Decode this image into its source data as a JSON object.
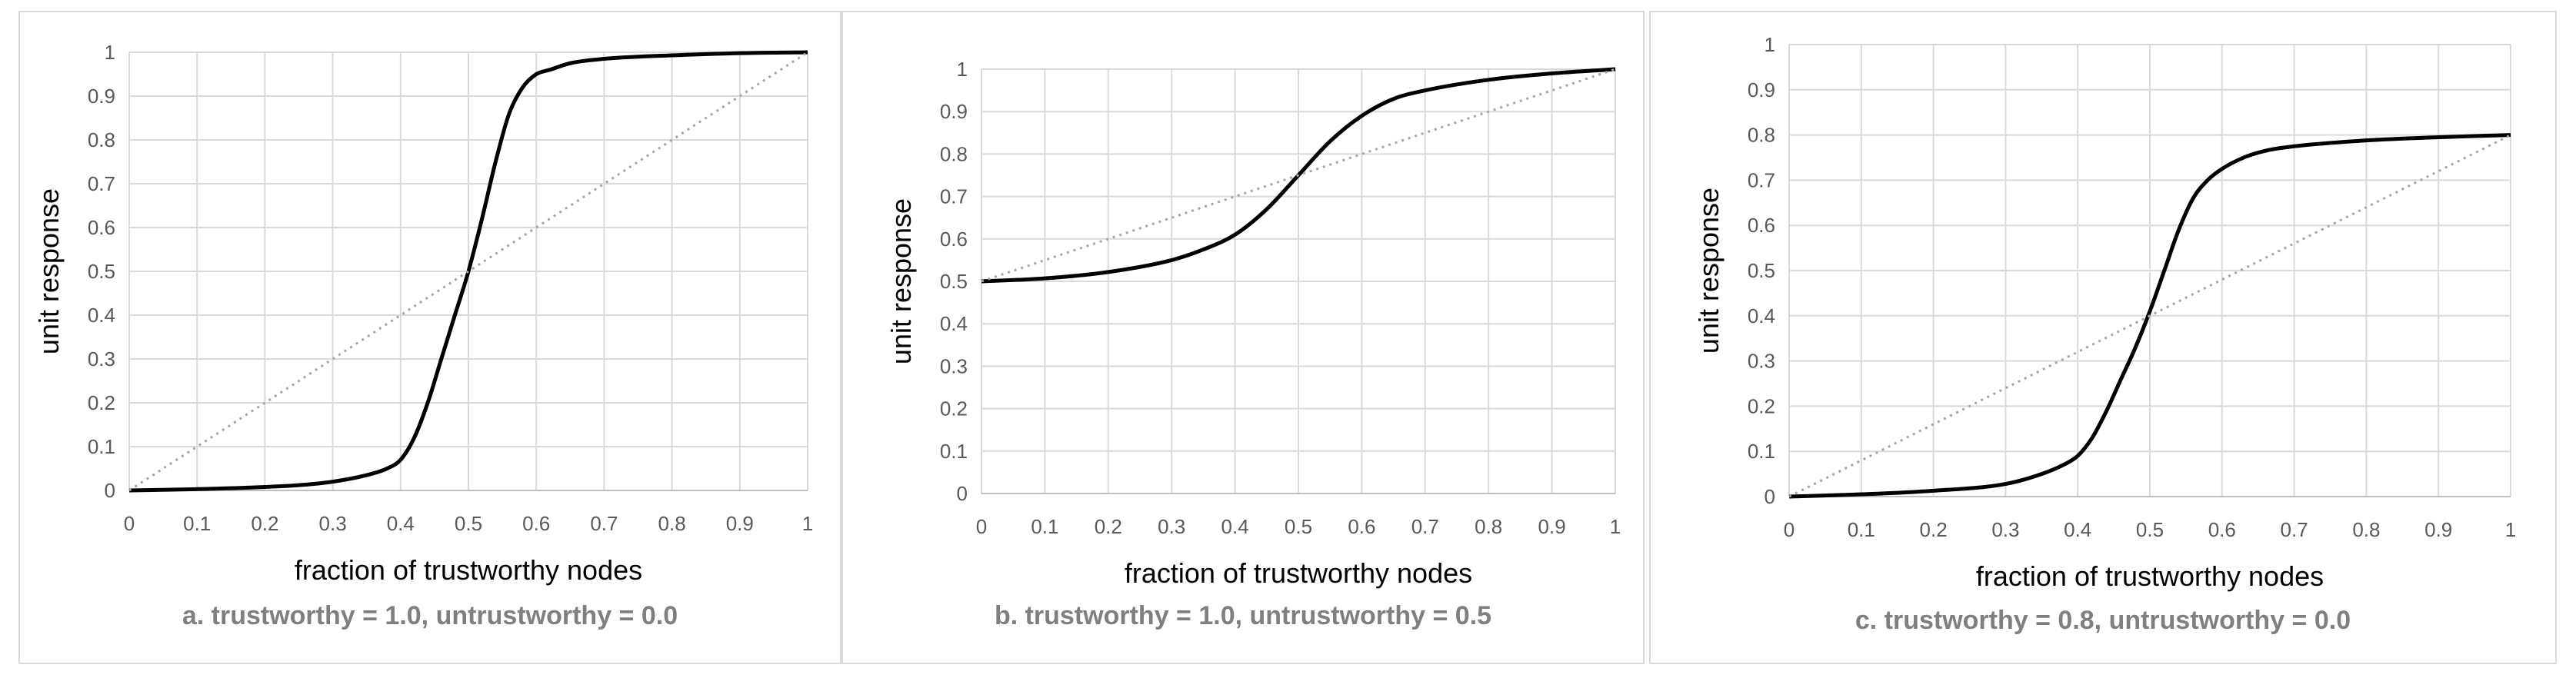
{
  "chart_data": [
    {
      "type": "line",
      "caption": "a. trustworthy = 1.0, untrustworthy = 0.0",
      "xlabel": "fraction of trustworthy nodes",
      "ylabel": "unit response",
      "xlim": [
        0,
        1
      ],
      "ylim": [
        0,
        1
      ],
      "xticks": [
        "0",
        "0.1",
        "0.2",
        "0.3",
        "0.4",
        "0.5",
        "0.6",
        "0.7",
        "0.8",
        "0.9",
        "1"
      ],
      "yticks": [
        "0",
        "0.1",
        "0.2",
        "0.3",
        "0.4",
        "0.5",
        "0.6",
        "0.7",
        "0.8",
        "0.9",
        "1"
      ],
      "grid": true,
      "series": [
        {
          "style": "solid",
          "x": [
            0,
            0.1,
            0.2,
            0.25,
            0.3,
            0.35,
            0.38,
            0.4,
            0.42,
            0.44,
            0.46,
            0.48,
            0.5,
            0.52,
            0.54,
            0.56,
            0.58,
            0.6,
            0.62,
            0.65,
            0.7,
            0.8,
            0.9,
            1
          ],
          "y": [
            0,
            0.003,
            0.008,
            0.012,
            0.02,
            0.035,
            0.05,
            0.07,
            0.12,
            0.2,
            0.3,
            0.4,
            0.5,
            0.62,
            0.75,
            0.86,
            0.92,
            0.95,
            0.96,
            0.975,
            0.985,
            0.993,
            0.998,
            1
          ]
        },
        {
          "style": "dotted",
          "x": [
            0,
            1
          ],
          "y": [
            0,
            1
          ]
        }
      ]
    },
    {
      "type": "line",
      "caption": "b. trustworthy = 1.0, untrustworthy = 0.5",
      "xlabel": "fraction of trustworthy nodes",
      "ylabel": "unit response",
      "xlim": [
        0,
        1
      ],
      "ylim": [
        0,
        1
      ],
      "xticks": [
        "0",
        "0.1",
        "0.2",
        "0.3",
        "0.4",
        "0.5",
        "0.6",
        "0.7",
        "0.8",
        "0.9",
        "1"
      ],
      "yticks": [
        "0",
        "0.1",
        "0.2",
        "0.3",
        "0.4",
        "0.5",
        "0.6",
        "0.7",
        "0.8",
        "0.9",
        "1"
      ],
      "grid": true,
      "series": [
        {
          "style": "solid",
          "x": [
            0,
            0.1,
            0.2,
            0.3,
            0.35,
            0.4,
            0.45,
            0.5,
            0.55,
            0.6,
            0.65,
            0.7,
            0.8,
            0.9,
            1
          ],
          "y": [
            0.5,
            0.507,
            0.522,
            0.55,
            0.575,
            0.61,
            0.67,
            0.75,
            0.83,
            0.89,
            0.93,
            0.95,
            0.975,
            0.99,
            1
          ]
        },
        {
          "style": "dotted",
          "x": [
            0,
            1
          ],
          "y": [
            0.5,
            1
          ]
        }
      ]
    },
    {
      "type": "line",
      "caption": "c. trustworthy = 0.8, untrustworthy = 0.0",
      "xlabel": "fraction of trustworthy nodes",
      "ylabel": "unit response",
      "xlim": [
        0,
        1
      ],
      "ylim": [
        0,
        1
      ],
      "xticks": [
        "0",
        "0.1",
        "0.2",
        "0.3",
        "0.4",
        "0.5",
        "0.6",
        "0.7",
        "0.8",
        "0.9",
        "1"
      ],
      "yticks": [
        "0",
        "0.1",
        "0.2",
        "0.3",
        "0.4",
        "0.5",
        "0.6",
        "0.7",
        "0.8",
        "0.9",
        "1"
      ],
      "grid": true,
      "series": [
        {
          "style": "solid",
          "x": [
            0,
            0.1,
            0.2,
            0.3,
            0.35,
            0.38,
            0.4,
            0.42,
            0.44,
            0.46,
            0.48,
            0.5,
            0.52,
            0.54,
            0.56,
            0.58,
            0.6,
            0.63,
            0.66,
            0.7,
            0.8,
            0.9,
            1
          ],
          "y": [
            0,
            0.005,
            0.013,
            0.028,
            0.05,
            0.07,
            0.09,
            0.13,
            0.19,
            0.26,
            0.33,
            0.41,
            0.5,
            0.59,
            0.66,
            0.7,
            0.725,
            0.75,
            0.765,
            0.775,
            0.788,
            0.795,
            0.8
          ]
        },
        {
          "style": "dotted",
          "x": [
            0,
            1
          ],
          "y": [
            0,
            0.8
          ]
        }
      ]
    }
  ]
}
